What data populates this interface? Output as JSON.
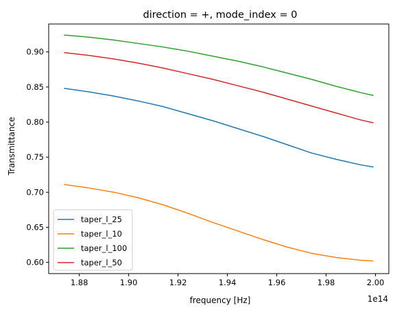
{
  "chart_data": {
    "type": "line",
    "title": "direction = +, mode_index = 0",
    "xlabel": "frequency [Hz]",
    "ylabel": "Transmittance",
    "x_offset_label": "1e14",
    "xlim": [
      1.8676,
      2.0054
    ],
    "ylim": [
      0.584,
      0.9398
    ],
    "xticks": [
      1.88,
      1.9,
      1.92,
      1.94,
      1.96,
      1.98,
      2.0
    ],
    "xtick_labels": [
      "1.88",
      "1.90",
      "1.92",
      "1.94",
      "1.96",
      "1.98",
      "2.00"
    ],
    "yticks": [
      0.6,
      0.65,
      0.7,
      0.75,
      0.8,
      0.85,
      0.9
    ],
    "ytick_labels": [
      "0.60",
      "0.65",
      "0.70",
      "0.75",
      "0.80",
      "0.85",
      "0.90"
    ],
    "grid": false,
    "legend_position": "lower-left",
    "x": [
      1.874,
      1.884,
      1.894,
      1.904,
      1.914,
      1.924,
      1.934,
      1.944,
      1.954,
      1.964,
      1.974,
      1.984,
      1.994,
      1.999
    ],
    "series": [
      {
        "name": "taper_l_25",
        "color": "#1f77b4",
        "values": [
          0.848,
          0.843,
          0.837,
          0.83,
          0.822,
          0.812,
          0.802,
          0.791,
          0.78,
          0.768,
          0.756,
          0.747,
          0.739,
          0.736
        ]
      },
      {
        "name": "taper_l_10",
        "color": "#ff7f0e",
        "values": [
          0.711,
          0.706,
          0.7,
          0.692,
          0.682,
          0.67,
          0.657,
          0.645,
          0.633,
          0.622,
          0.613,
          0.607,
          0.603,
          0.602
        ]
      },
      {
        "name": "taper_l_100",
        "color": "#2ca02c",
        "values": [
          0.924,
          0.921,
          0.917,
          0.912,
          0.907,
          0.901,
          0.894,
          0.887,
          0.879,
          0.87,
          0.861,
          0.851,
          0.842,
          0.838
        ]
      },
      {
        "name": "taper_l_50",
        "color": "#d62728",
        "values": [
          0.899,
          0.895,
          0.89,
          0.884,
          0.877,
          0.869,
          0.861,
          0.852,
          0.843,
          0.833,
          0.823,
          0.813,
          0.803,
          0.799
        ]
      }
    ]
  }
}
